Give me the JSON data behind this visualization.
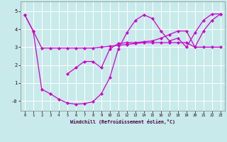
{
  "xlabel": "Windchill (Refroidissement éolien,°C)",
  "background_color": "#c8eaea",
  "grid_color": "#ffffff",
  "line_color": "#cc00cc",
  "x_ticks": [
    0,
    1,
    2,
    3,
    4,
    5,
    6,
    7,
    8,
    9,
    10,
    11,
    12,
    13,
    14,
    15,
    16,
    17,
    18,
    19,
    20,
    21,
    22,
    23
  ],
  "y_ticks": [
    0,
    1,
    2,
    3,
    4,
    5
  ],
  "y_tick_labels": [
    "-0",
    "1",
    "2",
    "3",
    "4",
    "5"
  ],
  "ylim": [
    -0.55,
    5.55
  ],
  "xlim": [
    -0.5,
    23.5
  ],
  "line1_x": [
    0,
    1,
    2,
    3,
    4,
    5,
    6,
    7,
    8,
    9,
    10,
    11,
    12,
    13,
    14,
    15,
    16,
    17,
    18,
    19,
    20,
    21,
    22,
    23
  ],
  "line1_y": [
    4.8,
    3.9,
    2.95,
    2.95,
    2.95,
    2.95,
    2.95,
    2.95,
    2.95,
    3.0,
    3.05,
    3.1,
    3.15,
    3.2,
    3.25,
    3.25,
    3.25,
    3.25,
    3.25,
    3.25,
    3.0,
    3.0,
    3.0,
    3.0
  ],
  "line2_x": [
    0,
    1,
    2,
    3,
    4,
    5,
    6,
    7,
    8,
    9,
    10,
    11,
    12,
    13,
    14,
    15,
    16,
    17,
    18,
    19,
    20,
    21,
    22,
    23
  ],
  "line2_y": [
    4.8,
    3.9,
    0.65,
    0.4,
    0.1,
    -0.12,
    -0.18,
    -0.15,
    -0.05,
    0.4,
    1.3,
    2.9,
    3.8,
    4.5,
    4.8,
    4.6,
    3.9,
    3.35,
    3.5,
    3.0,
    3.8,
    4.5,
    4.85,
    4.85
  ],
  "line3_x": [
    5,
    6,
    7,
    8,
    9,
    10,
    11,
    12,
    13,
    14,
    15,
    16,
    17,
    18,
    19,
    20,
    21,
    22,
    23
  ],
  "line3_y": [
    1.5,
    1.85,
    2.2,
    2.2,
    1.85,
    2.9,
    3.2,
    3.25,
    3.25,
    3.3,
    3.35,
    3.5,
    3.7,
    3.9,
    3.9,
    3.0,
    3.9,
    4.5,
    4.85
  ]
}
